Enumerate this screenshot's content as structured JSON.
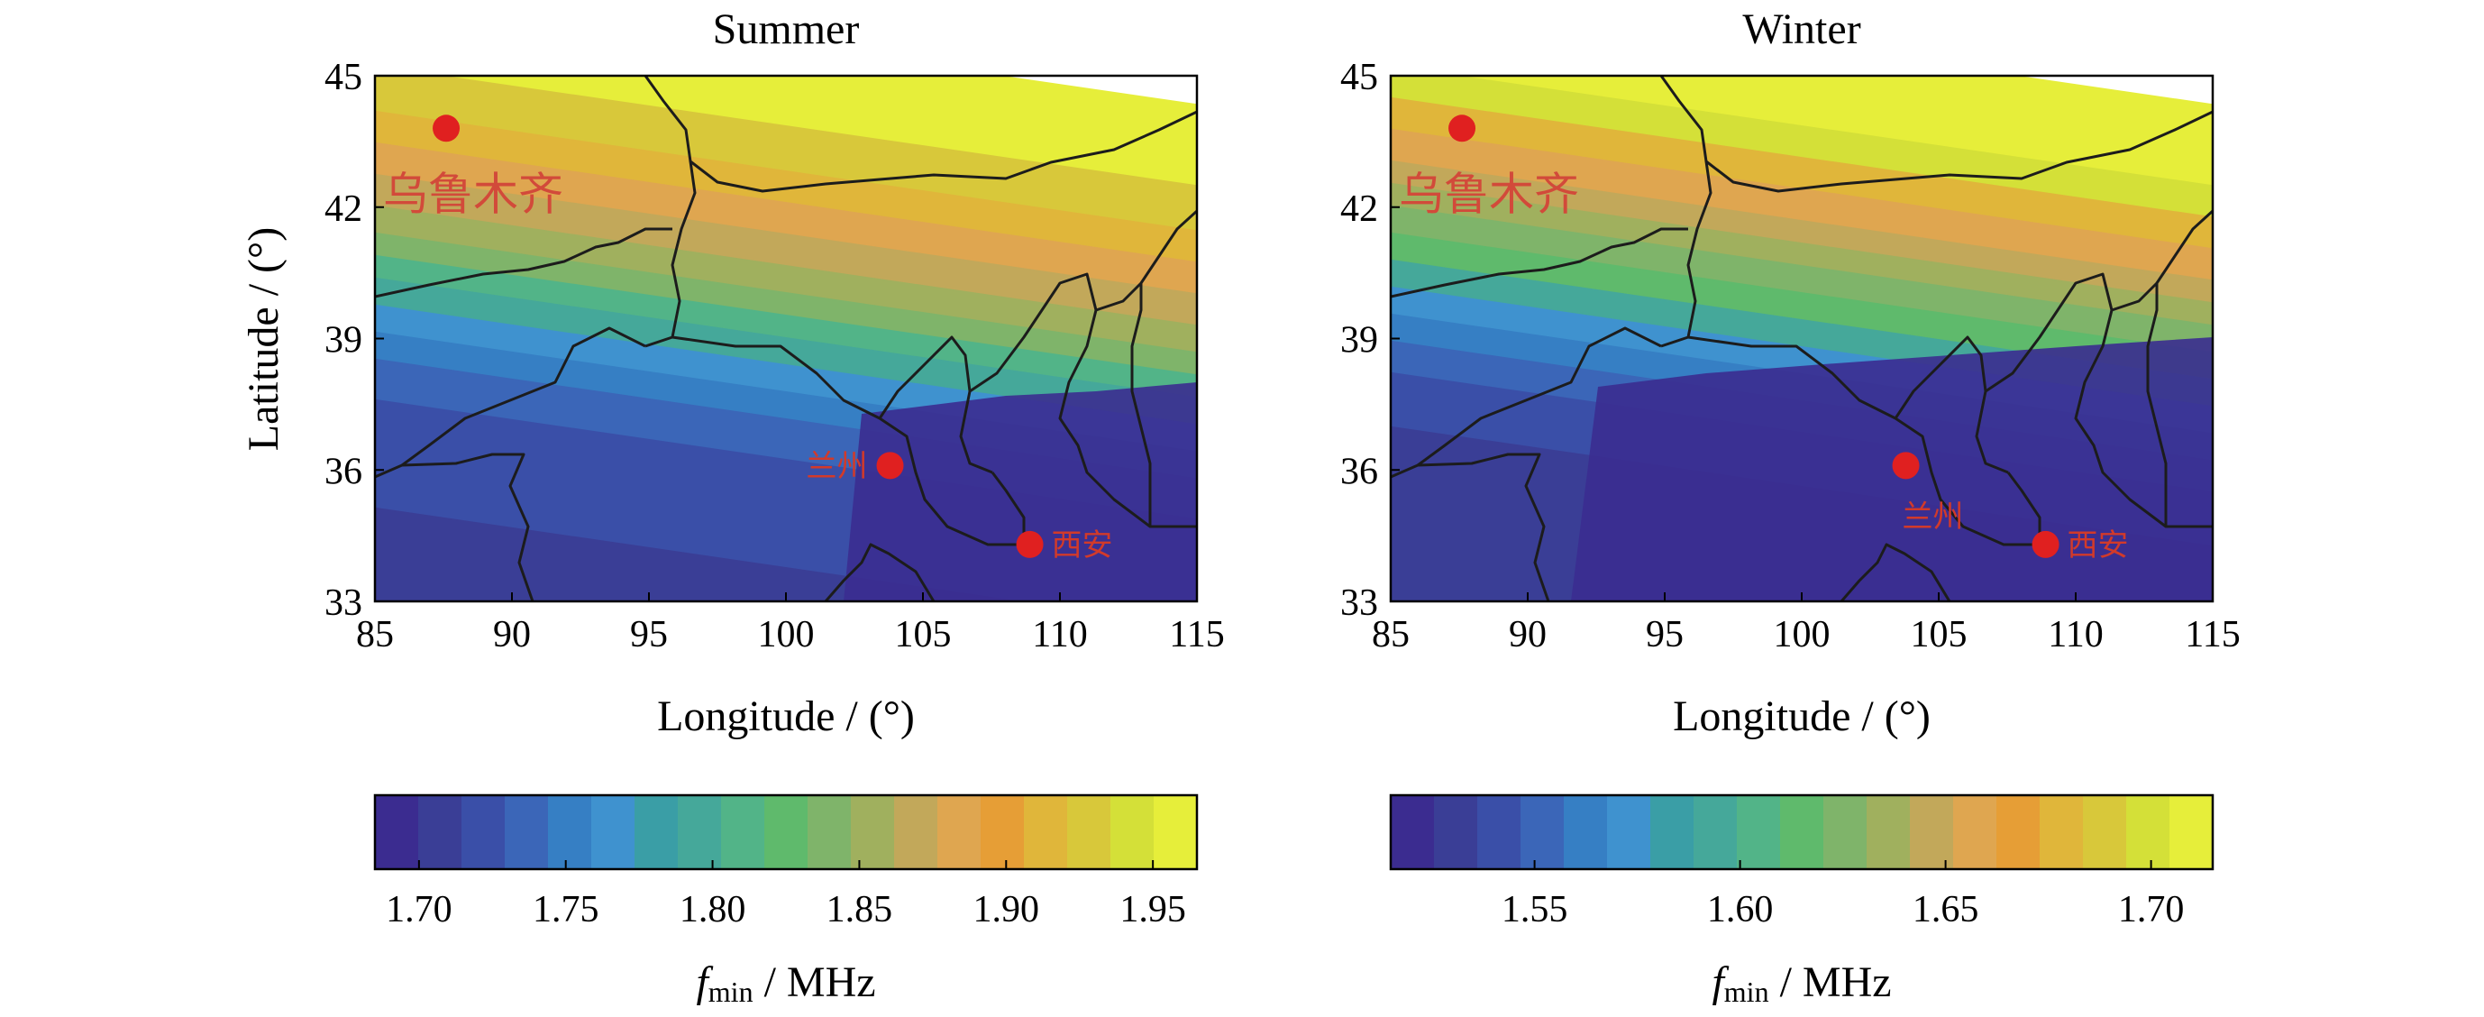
{
  "chart_data": [
    {
      "type": "heatmap",
      "title": "Summer",
      "xlabel": "Longitude / (°)",
      "ylabel": "Latitude / (°)",
      "xlim": [
        85,
        115
      ],
      "ylim": [
        33,
        45
      ],
      "xticks": [
        85,
        90,
        95,
        100,
        105,
        110,
        115
      ],
      "yticks": [
        33,
        36,
        39,
        42,
        45
      ],
      "cities": [
        {
          "name": "乌鲁木齐",
          "lon": 87.6,
          "lat": 43.8
        },
        {
          "name": "兰州",
          "lon": 103.8,
          "lat": 36.1
        },
        {
          "name": "西安",
          "lon": 108.9,
          "lat": 34.3
        }
      ],
      "colorbar": {
        "label_symbol": "f",
        "label_sub": "min",
        "label_unit": " / MHz",
        "range": [
          1.685,
          1.965
        ],
        "ticks": [
          "1.70",
          "1.75",
          "1.80",
          "1.85",
          "1.90",
          "1.95"
        ],
        "tick_values": [
          1.7,
          1.75,
          1.8,
          1.85,
          1.9,
          1.95
        ]
      }
    },
    {
      "type": "heatmap",
      "title": "Winter",
      "xlabel": "Longitude / (°)",
      "ylabel": "",
      "xlim": [
        85,
        115
      ],
      "ylim": [
        33,
        45
      ],
      "xticks": [
        85,
        90,
        95,
        100,
        105,
        110,
        115
      ],
      "yticks": [
        33,
        36,
        39,
        42,
        45
      ],
      "cities": [
        {
          "name": "乌鲁木齐",
          "lon": 87.6,
          "lat": 43.8
        },
        {
          "name": "兰州",
          "lon": 103.8,
          "lat": 36.1
        },
        {
          "name": "西安",
          "lon": 108.9,
          "lat": 34.3
        }
      ],
      "colorbar": {
        "label_symbol": "f",
        "label_sub": "min",
        "label_unit": " / MHz",
        "range": [
          1.515,
          1.715
        ],
        "ticks": [
          "1.55",
          "1.60",
          "1.65",
          "1.70"
        ],
        "tick_values": [
          1.55,
          1.6,
          1.65,
          1.7
        ]
      }
    }
  ],
  "colormap": [
    "#3b2c90",
    "#3a3e96",
    "#3a4fa8",
    "#3b66b8",
    "#367fc4",
    "#3f92cf",
    "#3a9ea6",
    "#45a89a",
    "#52b488",
    "#5fba6c",
    "#7fb46a",
    "#a0b05e",
    "#c2a85a",
    "#dfa650",
    "#e69e36",
    "#e0b63a",
    "#d8c83a",
    "#d4e038",
    "#e6ee3a"
  ],
  "border_color": "#1c1c1c",
  "city_color": "#e02020"
}
